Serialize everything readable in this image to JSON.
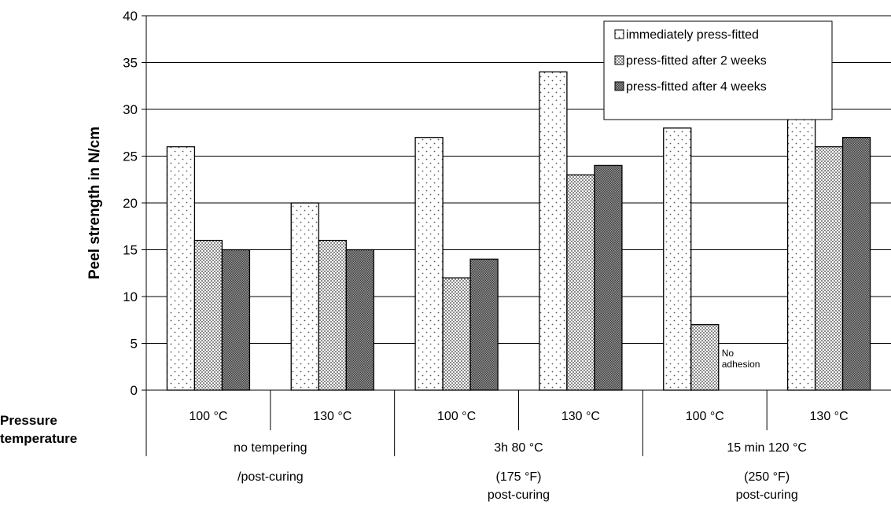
{
  "chart_data": {
    "type": "bar",
    "ylabel": "Peel strength in N/cm",
    "ylim": [
      0,
      40
    ],
    "yticks": [
      0,
      5,
      10,
      15,
      20,
      25,
      30,
      35,
      40
    ],
    "grid": true,
    "legend_position": "top-right",
    "categories": [
      "100 °C",
      "130 °C",
      "100 °C",
      "130 °C",
      "100 °C",
      "130 °C"
    ],
    "groups": [
      {
        "lines": [
          "no tempering",
          "/post-curing"
        ]
      },
      {
        "lines": [
          "3h 80 °C",
          "(175 °F)",
          "post-curing"
        ]
      },
      {
        "lines": [
          "15 min 120 °C",
          "(250 °F)",
          "post-curing"
        ]
      }
    ],
    "row_label": [
      "Pressure",
      "temperature"
    ],
    "series": [
      {
        "name": "immediately press-fitted",
        "values": [
          26,
          20,
          27,
          34,
          28,
          29
        ],
        "pattern": "sparse-dots"
      },
      {
        "name": "press-fitted after 2 weeks",
        "values": [
          16,
          16,
          12,
          23,
          7,
          26
        ],
        "pattern": "dense-dots"
      },
      {
        "name": "press-fitted after 4 weeks",
        "values": [
          15,
          15,
          14,
          24,
          null,
          27
        ],
        "pattern": "dark"
      }
    ],
    "annotations": [
      {
        "category_index": 4,
        "series_index": 2,
        "text": [
          "No",
          "adhesion"
        ]
      }
    ]
  }
}
